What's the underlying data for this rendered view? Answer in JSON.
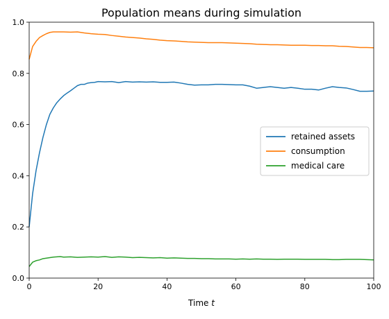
{
  "chart_data": {
    "type": "line",
    "title": "Population means during simulation",
    "xlabel": "Time",
    "xlabel_var": "t",
    "ylabel": "",
    "xlim": [
      0,
      100
    ],
    "ylim": [
      0.0,
      1.0
    ],
    "xticks": [
      "0",
      "20",
      "40",
      "60",
      "80",
      "100"
    ],
    "yticks": [
      "0.0",
      "0.2",
      "0.4",
      "0.6",
      "0.8",
      "1.0"
    ],
    "grid": false,
    "legend_position": "center-right",
    "series": [
      {
        "name": "retained assets",
        "color": "#1f77b4",
        "x": [
          0,
          1,
          2,
          3,
          4,
          5,
          6,
          7,
          8,
          9,
          10,
          11,
          12,
          13,
          14,
          15,
          16,
          17,
          18,
          19,
          20,
          22,
          24,
          26,
          28,
          30,
          32,
          34,
          36,
          38,
          40,
          42,
          44,
          46,
          48,
          50,
          52,
          54,
          56,
          58,
          60,
          62,
          64,
          66,
          68,
          70,
          72,
          74,
          76,
          78,
          80,
          82,
          84,
          86,
          88,
          90,
          92,
          94,
          96,
          98,
          100
        ],
        "values": [
          0.2,
          0.33,
          0.42,
          0.49,
          0.55,
          0.6,
          0.64,
          0.665,
          0.685,
          0.7,
          0.713,
          0.723,
          0.732,
          0.742,
          0.752,
          0.757,
          0.757,
          0.762,
          0.764,
          0.765,
          0.768,
          0.767,
          0.768,
          0.764,
          0.768,
          0.766,
          0.767,
          0.766,
          0.767,
          0.765,
          0.765,
          0.766,
          0.762,
          0.757,
          0.754,
          0.755,
          0.755,
          0.757,
          0.757,
          0.756,
          0.755,
          0.755,
          0.75,
          0.742,
          0.745,
          0.748,
          0.745,
          0.742,
          0.745,
          0.742,
          0.738,
          0.738,
          0.735,
          0.742,
          0.748,
          0.745,
          0.743,
          0.737,
          0.73,
          0.73,
          0.731
        ]
      },
      {
        "name": "consumption",
        "color": "#ff7f0e",
        "x": [
          0,
          1,
          2,
          3,
          4,
          5,
          6,
          7,
          8,
          9,
          10,
          12,
          14,
          16,
          18,
          20,
          22,
          24,
          26,
          28,
          30,
          32,
          34,
          36,
          38,
          40,
          42,
          44,
          46,
          48,
          50,
          52,
          54,
          56,
          58,
          60,
          62,
          64,
          66,
          68,
          70,
          72,
          74,
          76,
          78,
          80,
          82,
          84,
          86,
          88,
          90,
          92,
          94,
          96,
          98,
          100
        ],
        "values": [
          0.855,
          0.905,
          0.925,
          0.94,
          0.948,
          0.955,
          0.96,
          0.962,
          0.962,
          0.962,
          0.962,
          0.961,
          0.962,
          0.958,
          0.955,
          0.953,
          0.952,
          0.948,
          0.945,
          0.942,
          0.94,
          0.938,
          0.935,
          0.933,
          0.93,
          0.928,
          0.927,
          0.925,
          0.923,
          0.922,
          0.921,
          0.92,
          0.92,
          0.92,
          0.919,
          0.918,
          0.917,
          0.916,
          0.914,
          0.913,
          0.912,
          0.912,
          0.911,
          0.91,
          0.91,
          0.91,
          0.909,
          0.909,
          0.908,
          0.908,
          0.906,
          0.905,
          0.903,
          0.901,
          0.901,
          0.9
        ]
      },
      {
        "name": "medical care",
        "color": "#2ca02c",
        "x": [
          0,
          1,
          2,
          3,
          4,
          5,
          6,
          7,
          8,
          9,
          10,
          12,
          14,
          16,
          18,
          20,
          22,
          24,
          26,
          28,
          30,
          32,
          34,
          36,
          38,
          40,
          42,
          44,
          46,
          48,
          50,
          52,
          54,
          56,
          58,
          60,
          62,
          64,
          66,
          68,
          70,
          72,
          74,
          76,
          78,
          80,
          82,
          84,
          86,
          88,
          90,
          92,
          94,
          96,
          98,
          100
        ],
        "values": [
          0.045,
          0.062,
          0.068,
          0.071,
          0.076,
          0.078,
          0.08,
          0.082,
          0.083,
          0.084,
          0.082,
          0.083,
          0.081,
          0.082,
          0.083,
          0.082,
          0.084,
          0.081,
          0.083,
          0.082,
          0.08,
          0.081,
          0.08,
          0.079,
          0.08,
          0.078,
          0.079,
          0.078,
          0.077,
          0.077,
          0.076,
          0.076,
          0.075,
          0.075,
          0.075,
          0.074,
          0.075,
          0.074,
          0.075,
          0.074,
          0.074,
          0.073,
          0.074,
          0.074,
          0.074,
          0.073,
          0.073,
          0.073,
          0.073,
          0.072,
          0.072,
          0.073,
          0.073,
          0.073,
          0.072,
          0.071
        ]
      }
    ]
  }
}
